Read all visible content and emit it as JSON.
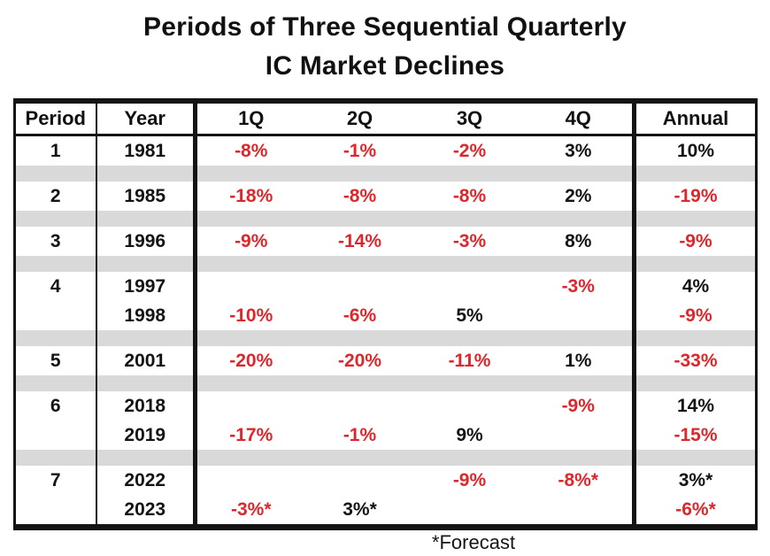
{
  "title": {
    "line1": "Periods of Three Sequential Quarterly",
    "line2": "IC Market Declines"
  },
  "colors": {
    "negative": "#dc272c",
    "positive": "#141414",
    "separator": "#d9d9d9",
    "border": "#141414"
  },
  "chart_data": {
    "type": "table",
    "title": "Periods of Three Sequential Quarterly IC Market Declines",
    "columns": [
      "Period",
      "Year",
      "1Q",
      "2Q",
      "3Q",
      "4Q",
      "Annual"
    ],
    "rows": [
      [
        "1",
        "1981",
        "-8%",
        "-1%",
        "-2%",
        "3%",
        "10%"
      ],
      [
        "2",
        "1985",
        "-18%",
        "-8%",
        "-8%",
        "2%",
        "-19%"
      ],
      [
        "3",
        "1996",
        "-9%",
        "-14%",
        "-3%",
        "8%",
        "-9%"
      ],
      [
        "4",
        "1997",
        "",
        "",
        "",
        "-3%",
        "4%"
      ],
      [
        "",
        "1998",
        "-10%",
        "-6%",
        "5%",
        "",
        "-9%"
      ],
      [
        "5",
        "2001",
        "-20%",
        "-20%",
        "-11%",
        "1%",
        "-33%"
      ],
      [
        "6",
        "2018",
        "",
        "",
        "",
        "-9%",
        "14%"
      ],
      [
        "",
        "2019",
        "-17%",
        "-1%",
        "9%",
        "",
        "-15%"
      ],
      [
        "7",
        "2022",
        "",
        "",
        "-9%",
        "-8%*",
        "3%*"
      ],
      [
        "",
        "2023",
        "-3%*",
        "3%*",
        "",
        "",
        "-6%*"
      ]
    ],
    "value_color_rule": "values beginning with minus are red, others black",
    "footnote": "*Forecast",
    "layout": {
      "separator_bands": "gray band between period groups",
      "grid": "vertical rules after Period, Year and 4Q columns only"
    }
  }
}
